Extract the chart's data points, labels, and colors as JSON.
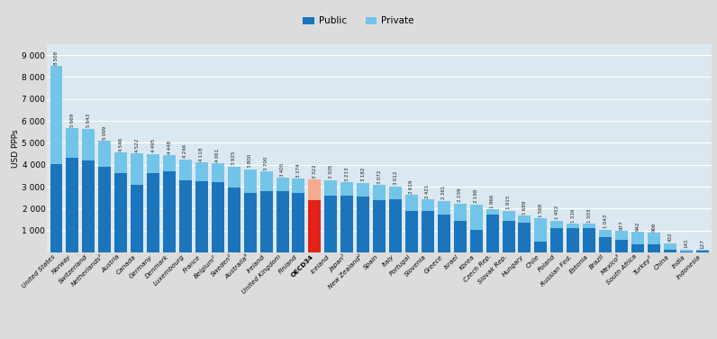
{
  "countries": [
    "United States",
    "Norway",
    "Switzerland",
    "Netherlands¹",
    "Austria",
    "Canada",
    "Germany",
    "Denmark",
    "Luxembourg",
    "France",
    "Belgium²",
    "Sweden²",
    "Australia³",
    "Ireland",
    "United Kingdom",
    "Finland",
    "OECD34",
    "Iceland",
    "Japan²",
    "New Zealand²",
    "Spain",
    "Italy",
    "Portugal",
    "Slovenia",
    "Greece",
    "Israel",
    "Korea",
    "Czech Rep.",
    "Slovak Rep.",
    "Hungary",
    "Chile",
    "Poland",
    "Russian Fed.",
    "Estonia",
    "Brazil",
    "Mexico³",
    "South Africa",
    "Turkey²",
    "China",
    "India",
    "Indonesia"
  ],
  "totals": [
    8508,
    5669,
    5643,
    5099,
    4546,
    4522,
    4495,
    4448,
    4246,
    4118,
    4061,
    3925,
    3800,
    3700,
    3405,
    3374,
    3322,
    3305,
    3213,
    3182,
    3072,
    3012,
    2619,
    2421,
    2361,
    2239,
    2198,
    1966,
    1915,
    1689,
    1568,
    1452,
    1316,
    1303,
    1043,
    977,
    942,
    906,
    432,
    141,
    127
  ],
  "public_values": [
    4050,
    4300,
    4200,
    3900,
    3600,
    3100,
    3600,
    3700,
    3300,
    3250,
    3200,
    2950,
    2700,
    2800,
    2800,
    2700,
    2380,
    2600,
    2600,
    2550,
    2380,
    2430,
    1900,
    1900,
    1750,
    1430,
    1050,
    1750,
    1430,
    1370,
    490,
    1100,
    1100,
    1100,
    700,
    600,
    380,
    380,
    130,
    30,
    80
  ],
  "is_oecd": [
    false,
    false,
    false,
    false,
    false,
    false,
    false,
    false,
    false,
    false,
    false,
    false,
    false,
    false,
    false,
    false,
    true,
    false,
    false,
    false,
    false,
    false,
    false,
    false,
    false,
    false,
    false,
    false,
    false,
    false,
    false,
    false,
    false,
    false,
    false,
    false,
    false,
    false,
    false,
    false,
    false
  ],
  "public_color": "#1b75bc",
  "private_color": "#72c5e8",
  "oecd_public_color": "#e32119",
  "oecd_private_color": "#f5a98e",
  "background_color": "#dcdcdc",
  "plot_bg_color": "#dce8f0",
  "ylabel": "USD PPPs",
  "ylim": [
    0,
    9500
  ],
  "ytick_vals": [
    0,
    1000,
    2000,
    3000,
    4000,
    5000,
    6000,
    7000,
    8000,
    9000
  ],
  "ytick_labels": [
    "",
    "1 000",
    "2 000",
    "3 000",
    "4 000",
    "5 000",
    "6 000",
    "7 000",
    "8 000",
    "9 000"
  ]
}
